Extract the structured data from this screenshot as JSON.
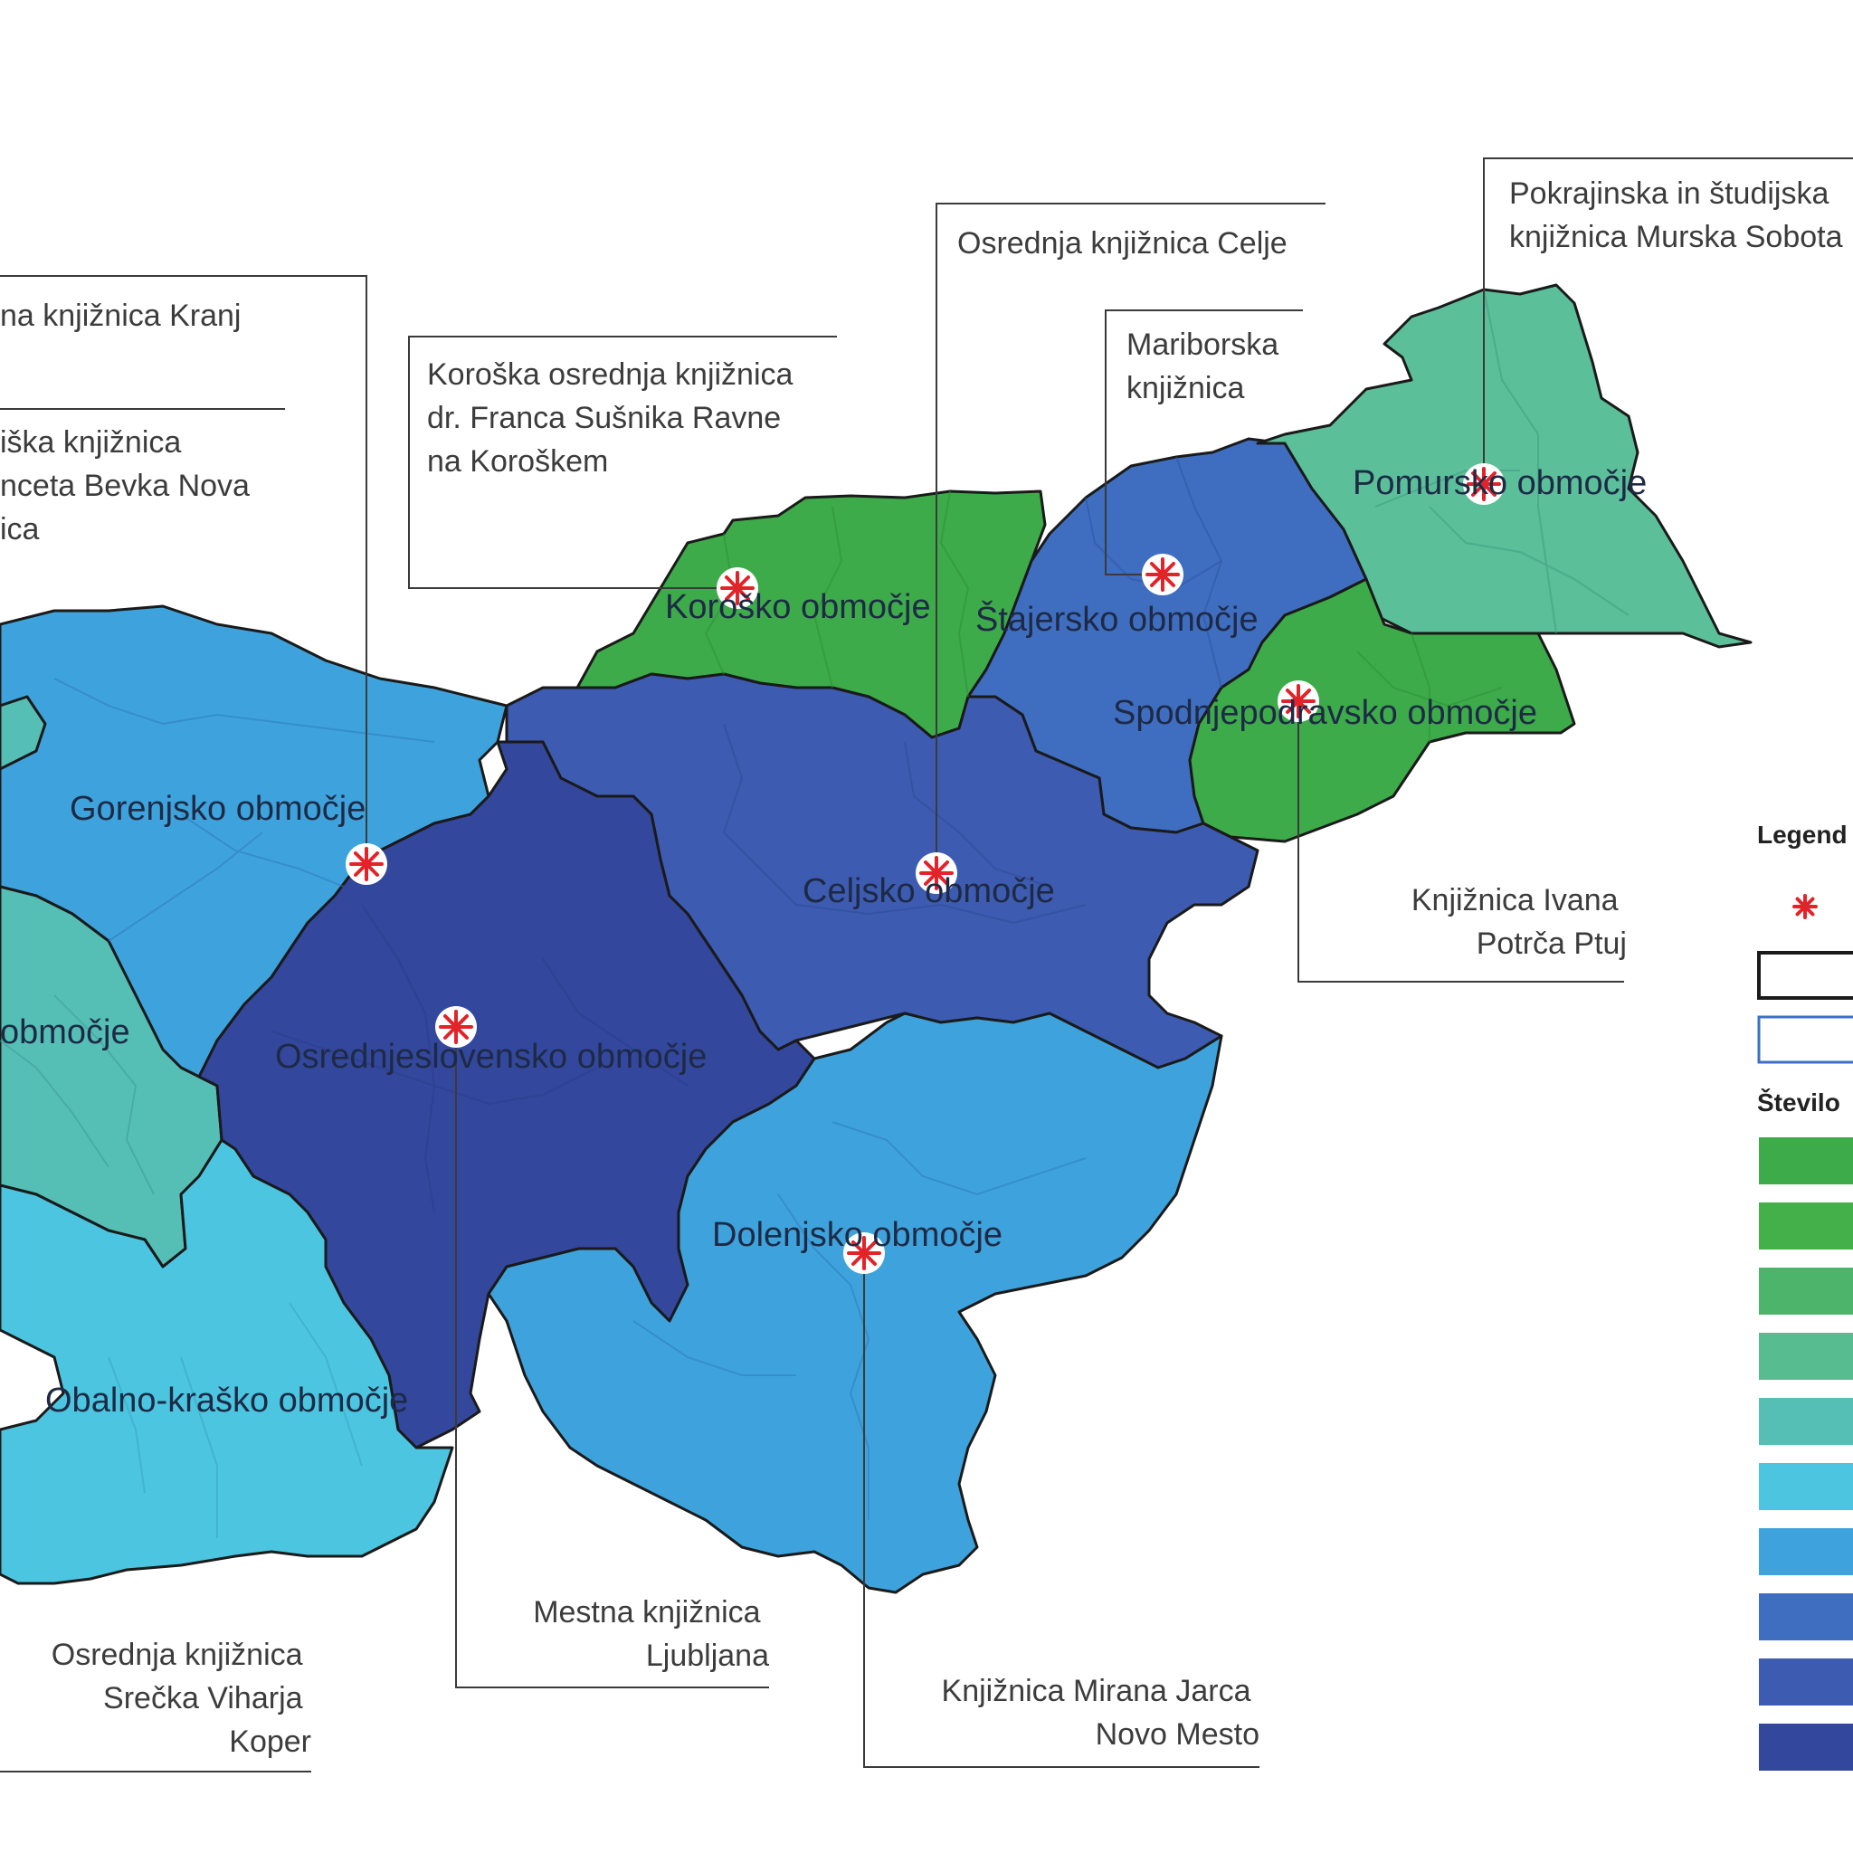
{
  "map": {
    "regions": [
      {
        "id": "koroska",
        "label": "Koroško območje",
        "color": "#3dab49"
      },
      {
        "id": "stajersko",
        "label": "Štajersko območje",
        "color": "#3f6ec0"
      },
      {
        "id": "pomursko",
        "label": "Pomursko območje",
        "color": "#5bbf9a"
      },
      {
        "id": "spodnjepodravsko",
        "label": "Spodnjepodravsko območje",
        "color": "#3dab49"
      },
      {
        "id": "gorenjsko",
        "label": "Gorenjsko območje",
        "color": "#3ea3dc"
      },
      {
        "id": "goriska",
        "label": "območje",
        "color": "#55bfb6"
      },
      {
        "id": "celjsko",
        "label": "Celjsko območje",
        "color": "#3d5bb0"
      },
      {
        "id": "osrednjeslovensko",
        "label": "Osrednjeslovensko območje",
        "color": "#33479c"
      },
      {
        "id": "dolenjsko",
        "label": "Dolenjsko območje",
        "color": "#3ea3dc"
      },
      {
        "id": "obalno",
        "label": "Obalno-kraško območje",
        "color": "#4cc5e0"
      }
    ],
    "libraries": [
      {
        "id": "kranj",
        "lines": [
          "na knjižnica Kranj"
        ]
      },
      {
        "id": "nova-gorica",
        "lines": [
          "iška knjižnica",
          "nceta Bevka Nova",
          "ica"
        ]
      },
      {
        "id": "ravne",
        "lines": [
          "Koroška osrednja knjižnica",
          "dr. Franca Sušnika Ravne",
          "na Koroškem"
        ]
      },
      {
        "id": "celje",
        "lines": [
          "Osrednja knjižnica Celje"
        ]
      },
      {
        "id": "maribor",
        "lines": [
          "Mariborska",
          "knjižnica"
        ]
      },
      {
        "id": "murska-sobota",
        "lines": [
          "Pokrajinska in študijska",
          "knjižnica Murska Sobota"
        ]
      },
      {
        "id": "ptuj",
        "lines": [
          "Knjižnica Ivana",
          "Potrča Ptuj"
        ]
      },
      {
        "id": "ljubljana",
        "lines": [
          "Mestna knjižnica",
          "Ljubljana"
        ]
      },
      {
        "id": "novo-mesto",
        "lines": [
          "Knjižnica Mirana Jarca",
          "Novo Mesto"
        ]
      },
      {
        "id": "koper",
        "lines": [
          "Osrednja knjižnica",
          "Srečka Viharja",
          "Koper"
        ]
      }
    ]
  },
  "legend": {
    "title": "Legend",
    "subtitle": "Število",
    "marker": "library-marker-icon",
    "boundary_styles": [
      {
        "name": "region-boundary",
        "stroke": "#1a1a1a"
      },
      {
        "name": "municipal-boundary",
        "stroke": "#3c6fc7"
      }
    ],
    "swatches": [
      "#3dab49",
      "#44b04a",
      "#4cb56b",
      "#57bc8f",
      "#55bfb6",
      "#4cc5e0",
      "#3ea3dc",
      "#3f6ec0",
      "#3d5bb0",
      "#33479c"
    ]
  }
}
